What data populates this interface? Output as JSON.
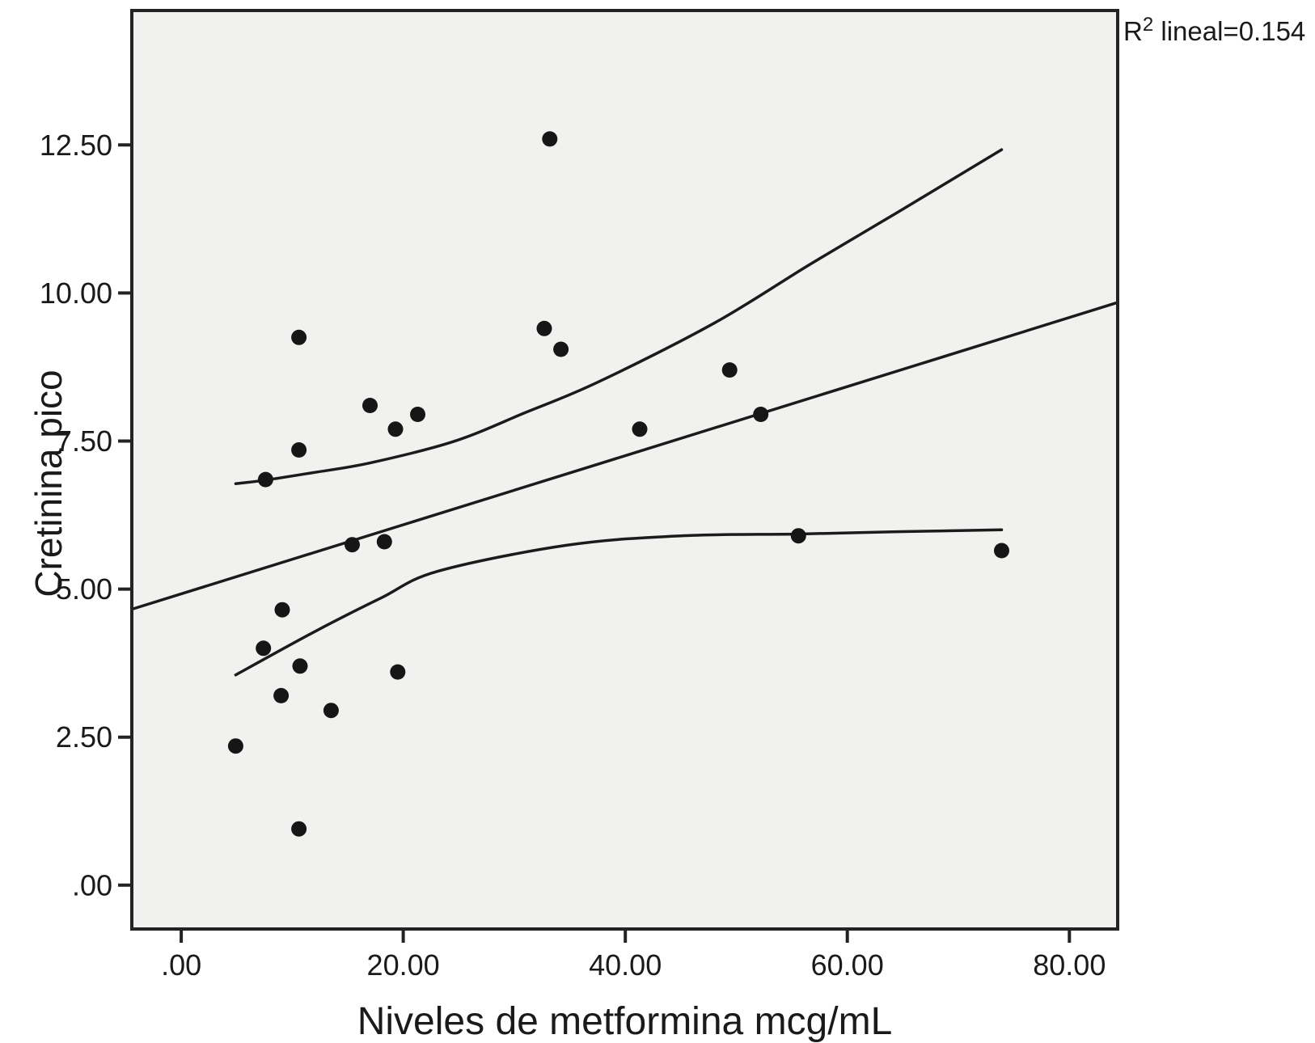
{
  "annotation": {
    "r2_prefix": "R",
    "r2_sup": "2",
    "r2_rest": " lineal=0.154"
  },
  "chart_data": {
    "type": "scatter",
    "title": "",
    "xlabel": "Niveles de metformina mcg/mL",
    "ylabel": "Cretinina pico",
    "r2_label": "R2 lineal=0.154",
    "r2_value": 0.154,
    "grid": false,
    "legend": "none",
    "xlim": [
      -4.45,
      84.35
    ],
    "ylim": [
      -0.74,
      14.77
    ],
    "x_ticks": [
      0,
      20,
      40,
      60,
      80
    ],
    "x_tick_labels": [
      ".00",
      "20.00",
      "40.00",
      "60.00",
      "80.00"
    ],
    "y_ticks": [
      0,
      2.5,
      5,
      7.5,
      10,
      12.5
    ],
    "y_tick_labels": [
      ".00",
      "2.50",
      "5.00",
      "7.50",
      "10.00",
      "12.50"
    ],
    "points": [
      [
        33.2,
        12.6
      ],
      [
        10.6,
        9.25
      ],
      [
        32.7,
        9.4
      ],
      [
        34.2,
        9.05
      ],
      [
        49.4,
        8.7
      ],
      [
        17.0,
        8.1
      ],
      [
        21.3,
        7.95
      ],
      [
        52.2,
        7.95
      ],
      [
        19.3,
        7.7
      ],
      [
        41.3,
        7.7
      ],
      [
        10.6,
        7.35
      ],
      [
        7.6,
        6.85
      ],
      [
        15.4,
        5.75
      ],
      [
        18.3,
        5.8
      ],
      [
        55.6,
        5.9
      ],
      [
        73.9,
        5.65
      ],
      [
        9.1,
        4.65
      ],
      [
        7.4,
        4.0
      ],
      [
        10.7,
        3.7
      ],
      [
        19.5,
        3.6
      ],
      [
        9.0,
        3.2
      ],
      [
        13.5,
        2.95
      ],
      [
        4.9,
        2.35
      ],
      [
        10.6,
        0.95
      ]
    ],
    "fit_line": {
      "name": "linear-regression",
      "points": [
        [
          -4.45,
          4.66
        ],
        [
          84.35,
          9.84
        ]
      ]
    },
    "ci_upper": [
      [
        4.9,
        6.78
      ],
      [
        7.6,
        6.84
      ],
      [
        12.0,
        6.97
      ],
      [
        17.0,
        7.13
      ],
      [
        24.5,
        7.49
      ],
      [
        31.0,
        7.98
      ],
      [
        37.6,
        8.5
      ],
      [
        48.0,
        9.49
      ],
      [
        56.6,
        10.48
      ],
      [
        64.6,
        11.37
      ],
      [
        73.9,
        12.42
      ]
    ],
    "ci_lower": [
      [
        4.9,
        3.55
      ],
      [
        12.2,
        4.3
      ],
      [
        18.0,
        4.85
      ],
      [
        23.1,
        5.3
      ],
      [
        34.7,
        5.74
      ],
      [
        45.0,
        5.9
      ],
      [
        55.6,
        5.93
      ],
      [
        65.0,
        5.97
      ],
      [
        73.9,
        6.0
      ]
    ],
    "colors": {
      "point": "#161616",
      "line": "#1b1b1b",
      "frame": "#232323",
      "plot_bg": "#f1f2ef",
      "page_bg": "#ffffff",
      "text": "#1a1a1a"
    }
  }
}
